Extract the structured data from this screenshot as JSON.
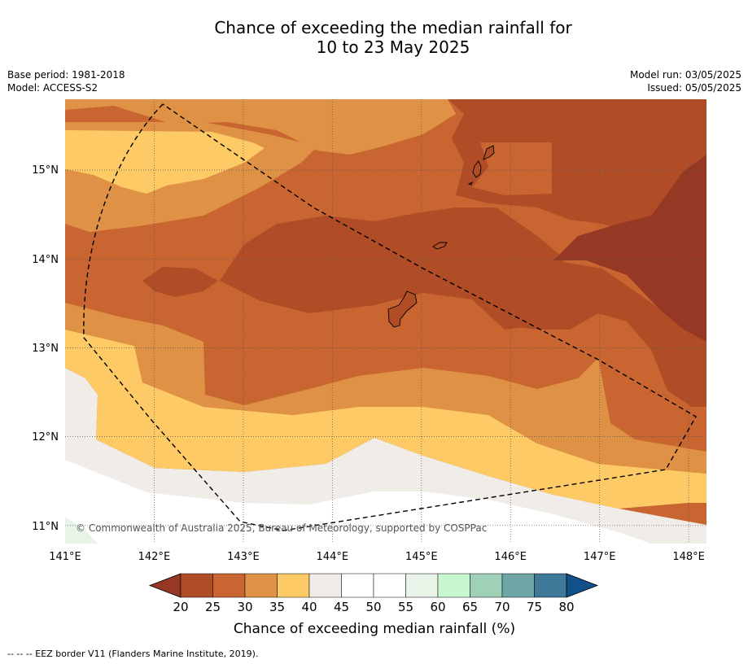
{
  "title_line1": "Chance of exceeding the median rainfall for",
  "title_line2": "10 to 23 May 2025",
  "meta_left": {
    "base_period": "Base period: 1981-2018",
    "model": "Model: ACCESS-S2"
  },
  "meta_right": {
    "model_run": "Model run: 03/05/2025",
    "issued": "Issued: 05/05/2025"
  },
  "map": {
    "lon_range": [
      141.0,
      148.2
    ],
    "lat_range": [
      10.8,
      15.8
    ],
    "lon_ticks": [
      "141°E",
      "142°E",
      "143°E",
      "144°E",
      "145°E",
      "146°E",
      "147°E",
      "148°E"
    ],
    "lat_ticks": [
      "15°N",
      "14°N",
      "13°N",
      "12°N",
      "11°N"
    ],
    "grid": "dotted",
    "copyright": "© Commonwealth of Australia 2025, Bureau of Meteorology, supported by COSPPac"
  },
  "colorbar": {
    "ticks": [
      "20",
      "25",
      "30",
      "35",
      "40",
      "45",
      "50",
      "55",
      "60",
      "65",
      "70",
      "75",
      "80"
    ],
    "colors": [
      "#953924",
      "#b04d27",
      "#c96531",
      "#df9245",
      "#fdca66",
      "#f0ece8",
      "#ffffff",
      "#ffffff",
      "#e8f4e8",
      "#c8f7cf",
      "#9fd0b8",
      "#6ea6a6",
      "#3f7999",
      "#12508a"
    ],
    "label": "Chance of exceeding median rainfall (%)"
  },
  "footer": "--  --  -- EEZ border V11 (Flanders Marine Institute, 2019)."
}
